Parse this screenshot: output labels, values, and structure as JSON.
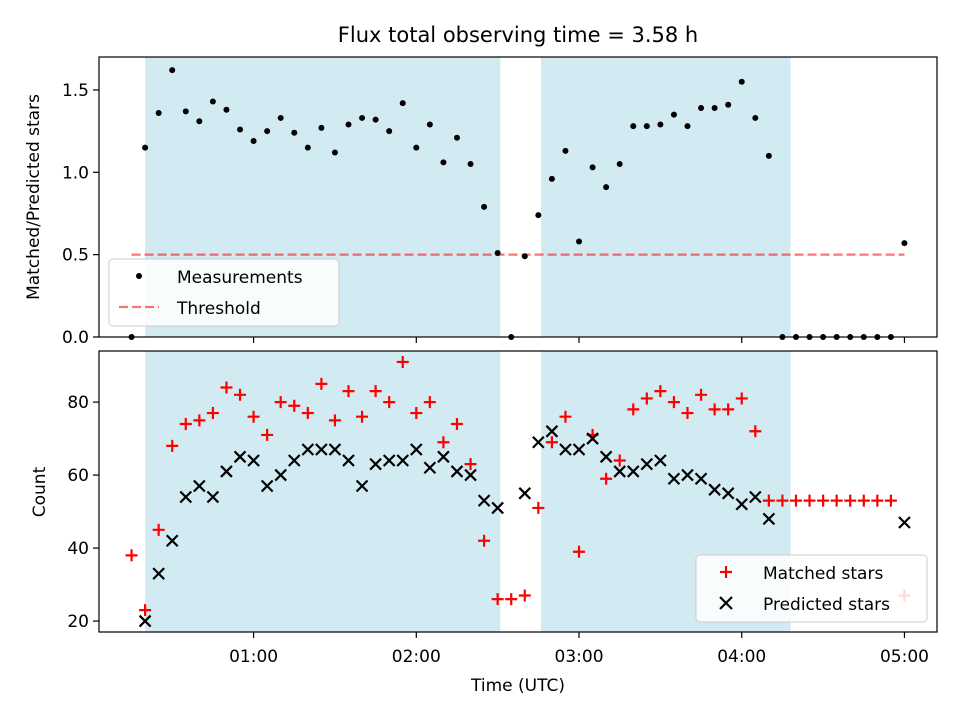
{
  "chart_data": [
    {
      "type": "scatter",
      "title": "Flux total observing time = 3.58 h",
      "xlabel": "",
      "ylabel": "Matched/Predicted stars",
      "ylim": [
        0,
        1.7
      ],
      "yticks": [
        0.0,
        0.5,
        1.0,
        1.5
      ],
      "ytick_labels": [
        "0.0",
        "0.5",
        "1.0",
        "1.5"
      ],
      "xlim_hours": [
        0.05,
        5.2
      ],
      "shaded_intervals": [
        [
          "00:20",
          "02:31"
        ],
        [
          "02:46",
          "04:18"
        ]
      ],
      "shade_color": "#add8e6",
      "legend": {
        "location": "lower-left",
        "entries": [
          "Measurements",
          "Threshold"
        ]
      },
      "threshold": {
        "name": "Threshold",
        "value": 0.5,
        "x_start": "00:15",
        "x_end": "05:00",
        "color": "#ff0000",
        "style": "dashed"
      },
      "series": [
        {
          "name": "Measurements",
          "color": "#000000",
          "marker": "dot",
          "points": [
            [
              "00:15",
              0.0
            ],
            [
              "00:20",
              1.15
            ],
            [
              "00:25",
              1.36
            ],
            [
              "00:30",
              1.62
            ],
            [
              "00:35",
              1.37
            ],
            [
              "00:40",
              1.31
            ],
            [
              "00:45",
              1.43
            ],
            [
              "00:50",
              1.38
            ],
            [
              "00:55",
              1.26
            ],
            [
              "01:00",
              1.19
            ],
            [
              "01:05",
              1.25
            ],
            [
              "01:10",
              1.33
            ],
            [
              "01:15",
              1.24
            ],
            [
              "01:20",
              1.15
            ],
            [
              "01:25",
              1.27
            ],
            [
              "01:30",
              1.12
            ],
            [
              "01:35",
              1.29
            ],
            [
              "01:40",
              1.33
            ],
            [
              "01:45",
              1.32
            ],
            [
              "01:50",
              1.25
            ],
            [
              "01:55",
              1.42
            ],
            [
              "02:00",
              1.15
            ],
            [
              "02:05",
              1.29
            ],
            [
              "02:10",
              1.06
            ],
            [
              "02:15",
              1.21
            ],
            [
              "02:20",
              1.05
            ],
            [
              "02:25",
              0.79
            ],
            [
              "02:30",
              0.51
            ],
            [
              "02:35",
              0.0
            ],
            [
              "02:40",
              0.49
            ],
            [
              "02:45",
              0.74
            ],
            [
              "02:50",
              0.96
            ],
            [
              "02:55",
              1.13
            ],
            [
              "03:00",
              0.58
            ],
            [
              "03:05",
              1.03
            ],
            [
              "03:10",
              0.91
            ],
            [
              "03:15",
              1.05
            ],
            [
              "03:20",
              1.28
            ],
            [
              "03:25",
              1.28
            ],
            [
              "03:30",
              1.29
            ],
            [
              "03:35",
              1.35
            ],
            [
              "03:40",
              1.28
            ],
            [
              "03:45",
              1.39
            ],
            [
              "03:50",
              1.39
            ],
            [
              "03:55",
              1.41
            ],
            [
              "04:00",
              1.55
            ],
            [
              "04:05",
              1.33
            ],
            [
              "04:10",
              1.1
            ],
            [
              "04:15",
              0.0
            ],
            [
              "04:20",
              0.0
            ],
            [
              "04:25",
              0.0
            ],
            [
              "04:30",
              0.0
            ],
            [
              "04:35",
              0.0
            ],
            [
              "04:40",
              0.0
            ],
            [
              "04:45",
              0.0
            ],
            [
              "04:50",
              0.0
            ],
            [
              "04:55",
              0.0
            ],
            [
              "05:00",
              0.57
            ]
          ]
        }
      ]
    },
    {
      "type": "scatter",
      "xlabel": "Time (UTC)",
      "ylabel": "Count",
      "ylim": [
        17,
        94
      ],
      "yticks": [
        20,
        40,
        60,
        80
      ],
      "ytick_labels": [
        "20",
        "40",
        "60",
        "80"
      ],
      "xticks": [
        "01:00",
        "02:00",
        "03:00",
        "04:00",
        "05:00"
      ],
      "xlim_hours": [
        0.05,
        5.2
      ],
      "shaded_intervals": [
        [
          "00:20",
          "02:31"
        ],
        [
          "02:46",
          "04:18"
        ]
      ],
      "shade_color": "#add8e6",
      "legend": {
        "location": "lower-right",
        "entries": [
          "Matched stars",
          "Predicted stars"
        ]
      },
      "series": [
        {
          "name": "Matched stars",
          "color": "#ff0000",
          "marker": "plus",
          "points": [
            [
              "00:15",
              38
            ],
            [
              "00:20",
              23
            ],
            [
              "00:25",
              45
            ],
            [
              "00:30",
              68
            ],
            [
              "00:35",
              74
            ],
            [
              "00:40",
              75
            ],
            [
              "00:45",
              77
            ],
            [
              "00:50",
              84
            ],
            [
              "00:55",
              82
            ],
            [
              "01:00",
              76
            ],
            [
              "01:05",
              71
            ],
            [
              "01:10",
              80
            ],
            [
              "01:15",
              79
            ],
            [
              "01:20",
              77
            ],
            [
              "01:25",
              85
            ],
            [
              "01:30",
              75
            ],
            [
              "01:35",
              83
            ],
            [
              "01:40",
              76
            ],
            [
              "01:45",
              83
            ],
            [
              "01:50",
              80
            ],
            [
              "01:55",
              91
            ],
            [
              "02:00",
              77
            ],
            [
              "02:05",
              80
            ],
            [
              "02:10",
              69
            ],
            [
              "02:15",
              74
            ],
            [
              "02:20",
              63
            ],
            [
              "02:25",
              42
            ],
            [
              "02:30",
              26
            ],
            [
              "02:35",
              26
            ],
            [
              "02:40",
              27
            ],
            [
              "02:45",
              51
            ],
            [
              "02:50",
              69
            ],
            [
              "02:55",
              76
            ],
            [
              "03:00",
              39
            ],
            [
              "03:05",
              71
            ],
            [
              "03:10",
              59
            ],
            [
              "03:15",
              64
            ],
            [
              "03:20",
              78
            ],
            [
              "03:25",
              81
            ],
            [
              "03:30",
              83
            ],
            [
              "03:35",
              80
            ],
            [
              "03:40",
              77
            ],
            [
              "03:45",
              82
            ],
            [
              "03:50",
              78
            ],
            [
              "03:55",
              78
            ],
            [
              "04:00",
              81
            ],
            [
              "04:05",
              72
            ],
            [
              "04:10",
              53
            ],
            [
              "04:15",
              53
            ],
            [
              "04:20",
              53
            ],
            [
              "04:25",
              53
            ],
            [
              "04:30",
              53
            ],
            [
              "04:35",
              53
            ],
            [
              "04:40",
              53
            ],
            [
              "04:45",
              53
            ],
            [
              "04:50",
              53
            ],
            [
              "04:55",
              53
            ],
            [
              "05:00",
              27
            ]
          ]
        },
        {
          "name": "Predicted stars",
          "color": "#000000",
          "marker": "x",
          "points": [
            [
              "00:20",
              20
            ],
            [
              "00:25",
              33
            ],
            [
              "00:30",
              42
            ],
            [
              "00:35",
              54
            ],
            [
              "00:40",
              57
            ],
            [
              "00:45",
              54
            ],
            [
              "00:50",
              61
            ],
            [
              "00:55",
              65
            ],
            [
              "01:00",
              64
            ],
            [
              "01:05",
              57
            ],
            [
              "01:10",
              60
            ],
            [
              "01:15",
              64
            ],
            [
              "01:20",
              67
            ],
            [
              "01:25",
              67
            ],
            [
              "01:30",
              67
            ],
            [
              "01:35",
              64
            ],
            [
              "01:40",
              57
            ],
            [
              "01:45",
              63
            ],
            [
              "01:50",
              64
            ],
            [
              "01:55",
              64
            ],
            [
              "02:00",
              67
            ],
            [
              "02:05",
              62
            ],
            [
              "02:10",
              65
            ],
            [
              "02:15",
              61
            ],
            [
              "02:20",
              60
            ],
            [
              "02:25",
              53
            ],
            [
              "02:30",
              51
            ],
            [
              "02:40",
              55
            ],
            [
              "02:45",
              69
            ],
            [
              "02:50",
              72
            ],
            [
              "02:55",
              67
            ],
            [
              "03:00",
              67
            ],
            [
              "03:05",
              70
            ],
            [
              "03:10",
              65
            ],
            [
              "03:15",
              61
            ],
            [
              "03:20",
              61
            ],
            [
              "03:25",
              63
            ],
            [
              "03:30",
              64
            ],
            [
              "03:35",
              59
            ],
            [
              "03:40",
              60
            ],
            [
              "03:45",
              59
            ],
            [
              "03:50",
              56
            ],
            [
              "03:55",
              55
            ],
            [
              "04:00",
              52
            ],
            [
              "04:05",
              54
            ],
            [
              "04:10",
              48
            ],
            [
              "05:00",
              47
            ]
          ]
        }
      ]
    }
  ]
}
